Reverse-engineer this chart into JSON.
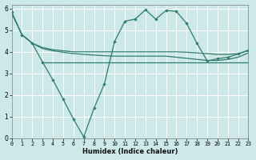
{
  "xlabel": "Humidex (Indice chaleur)",
  "bg_color": "#cce8e8",
  "grid_color": "#ffffff",
  "line_color": "#2e7d6e",
  "xlim": [
    0,
    23
  ],
  "ylim": [
    0,
    6.2
  ],
  "xticks": [
    0,
    1,
    2,
    3,
    4,
    5,
    6,
    7,
    8,
    9,
    10,
    11,
    12,
    13,
    14,
    15,
    16,
    17,
    18,
    19,
    20,
    21,
    22,
    23
  ],
  "yticks": [
    0,
    1,
    2,
    3,
    4,
    5,
    6
  ],
  "line_upper": {
    "x": [
      0,
      1,
      2,
      3,
      4,
      5,
      6,
      7,
      8,
      9,
      10,
      11,
      12,
      13,
      14,
      15,
      16,
      17,
      18,
      19,
      20,
      21,
      22,
      23
    ],
    "y": [
      5.8,
      4.8,
      4.4,
      4.2,
      4.1,
      4.05,
      4.0,
      4.0,
      4.0,
      4.0,
      4.0,
      4.0,
      4.0,
      4.0,
      4.0,
      4.0,
      4.0,
      3.98,
      3.95,
      3.92,
      3.88,
      3.88,
      3.92,
      4.05
    ]
  },
  "line_mid": {
    "x": [
      0,
      1,
      2,
      3,
      4,
      5,
      6,
      7,
      8,
      9,
      10,
      11,
      12,
      13,
      14,
      15,
      16,
      17,
      18,
      19,
      20,
      21,
      22,
      23
    ],
    "y": [
      5.8,
      4.8,
      4.4,
      4.15,
      4.05,
      3.98,
      3.92,
      3.88,
      3.85,
      3.82,
      3.8,
      3.8,
      3.8,
      3.8,
      3.8,
      3.8,
      3.75,
      3.7,
      3.65,
      3.6,
      3.6,
      3.65,
      3.75,
      3.95
    ]
  },
  "line_flat": {
    "x": [
      3,
      4,
      5,
      6,
      7,
      8,
      9,
      10,
      11,
      12,
      13,
      14,
      15,
      16,
      17,
      18,
      19,
      20,
      21,
      22,
      23
    ],
    "y": [
      3.52,
      3.52,
      3.52,
      3.52,
      3.52,
      3.52,
      3.52,
      3.52,
      3.52,
      3.52,
      3.52,
      3.52,
      3.52,
      3.52,
      3.52,
      3.52,
      3.52,
      3.52,
      3.52,
      3.52,
      3.52
    ]
  },
  "line_marked": {
    "x": [
      0,
      1,
      2,
      3,
      4,
      5,
      6,
      7,
      8,
      9,
      10,
      11,
      12,
      13,
      14,
      15,
      16,
      17,
      18,
      19,
      20,
      21,
      22,
      23
    ],
    "y": [
      5.85,
      4.78,
      4.4,
      3.52,
      2.7,
      1.8,
      0.88,
      0.05,
      1.38,
      2.5,
      4.48,
      5.42,
      5.52,
      5.95,
      5.52,
      5.92,
      5.88,
      5.32,
      4.4,
      3.58,
      3.68,
      3.75,
      3.9,
      4.08
    ]
  }
}
